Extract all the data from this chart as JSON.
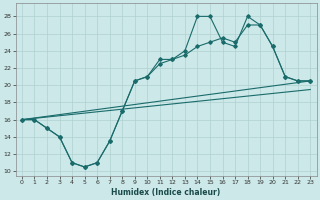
{
  "title": "",
  "xlabel": "Humidex (Indice chaleur)",
  "background_color": "#cce8e8",
  "grid_color": "#b0d0d0",
  "line_color": "#1a6b6b",
  "xlim": [
    -0.5,
    23.5
  ],
  "ylim": [
    9.5,
    29.5
  ],
  "xticks": [
    0,
    1,
    2,
    3,
    4,
    5,
    6,
    7,
    8,
    9,
    10,
    11,
    12,
    13,
    14,
    15,
    16,
    17,
    18,
    19,
    20,
    21,
    22,
    23
  ],
  "yticks": [
    10,
    12,
    14,
    16,
    18,
    20,
    22,
    24,
    26,
    28
  ],
  "curve1_x": [
    0,
    1,
    2,
    3,
    4,
    5,
    6,
    7,
    8,
    9,
    10,
    11,
    12,
    13,
    14,
    15,
    16,
    17,
    18,
    19,
    20,
    21,
    22,
    23
  ],
  "curve1_y": [
    16,
    16,
    15,
    14,
    11,
    10.5,
    11,
    13.5,
    17,
    20.5,
    21,
    23,
    23,
    24,
    28,
    28,
    25,
    24.5,
    28,
    27,
    24.5,
    21,
    20.5,
    20.5
  ],
  "curve2_x": [
    0,
    1,
    2,
    3,
    4,
    5,
    6,
    7,
    8,
    9,
    10,
    11,
    12,
    13,
    14,
    15,
    16,
    17,
    18,
    19,
    20,
    21,
    22,
    23
  ],
  "curve2_y": [
    16,
    16,
    15,
    14,
    11,
    10.5,
    11,
    13.5,
    17,
    20.5,
    21,
    22.5,
    23,
    23.5,
    24.5,
    25,
    25.5,
    25,
    27,
    27,
    24.5,
    21,
    20.5,
    20.5
  ],
  "line1_x": [
    0,
    23
  ],
  "line1_y": [
    16,
    20.5
  ],
  "line2_x": [
    0,
    23
  ],
  "line2_y": [
    16,
    19.5
  ]
}
